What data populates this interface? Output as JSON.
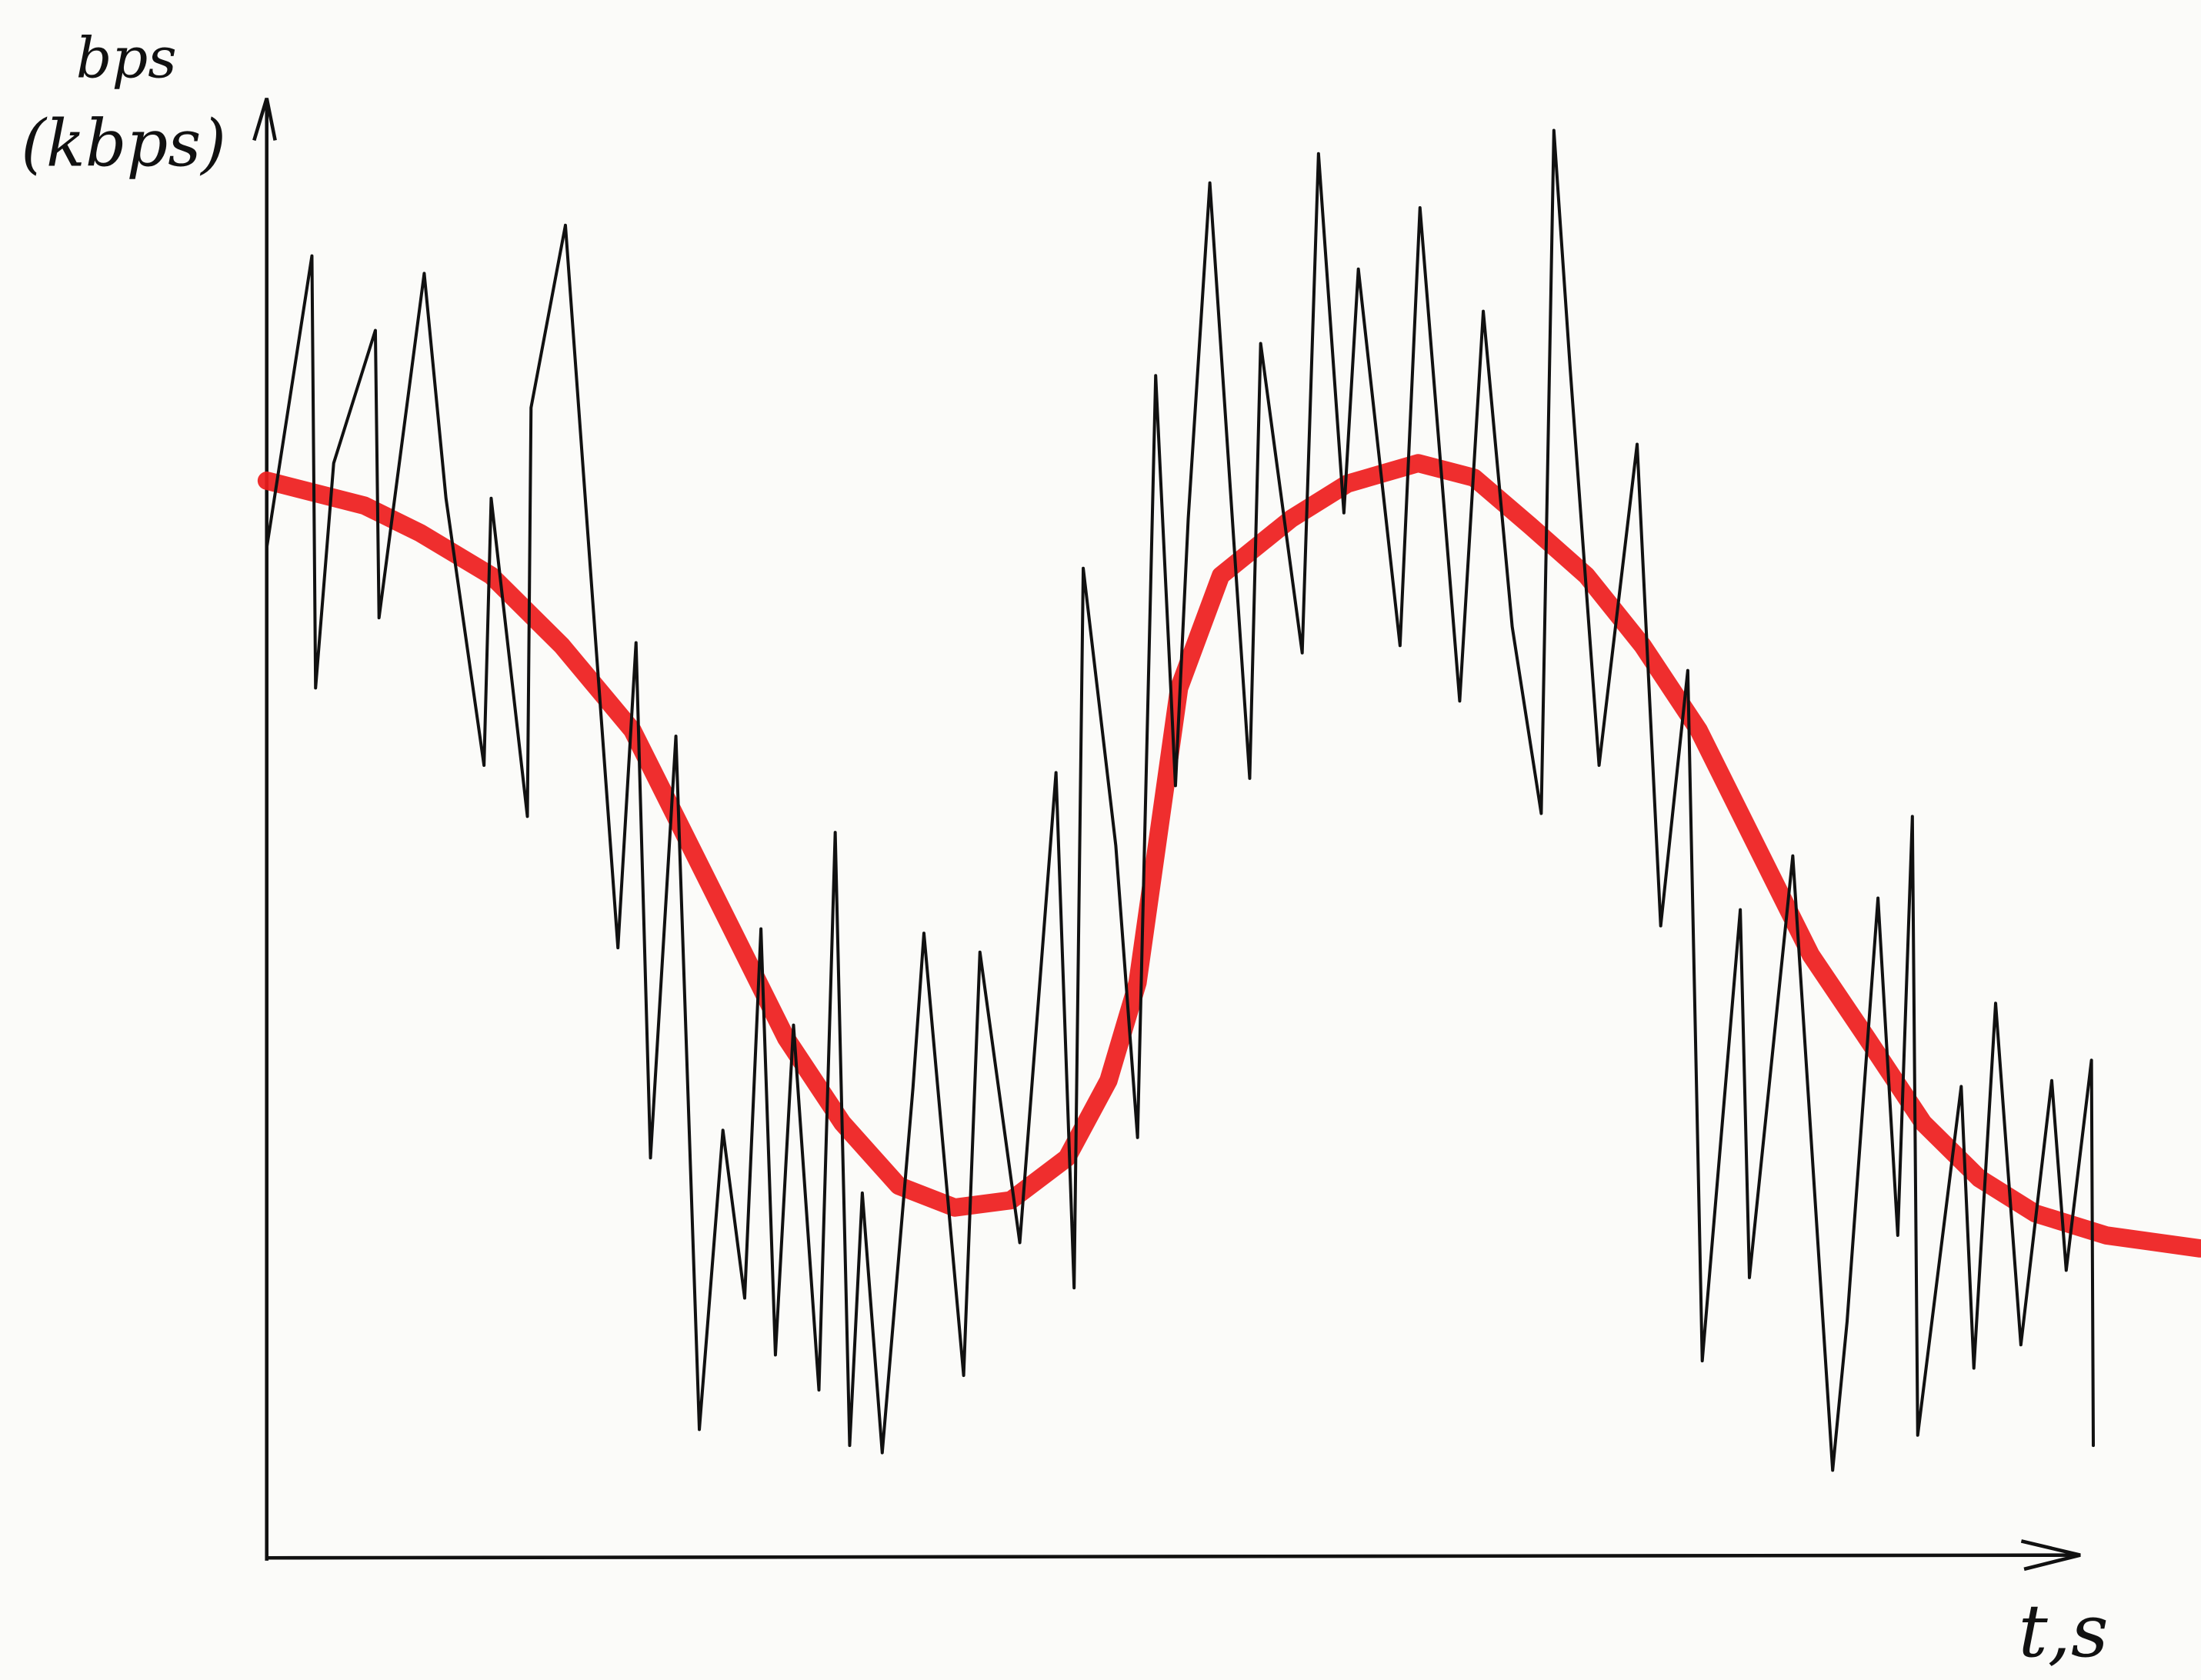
{
  "chart_data": {
    "type": "line",
    "ylabel": [
      "bps",
      "(kbps)"
    ],
    "xlabel": "t,s",
    "xlim": [
      0,
      107
    ],
    "ylim": [
      0,
      100
    ],
    "grid": false,
    "series": [
      {
        "color": "#111111",
        "x": [
          0,
          2.5,
          2.7,
          3.7,
          6.0,
          6.2,
          8.7,
          9.9,
          12.0,
          12.4,
          14.4,
          14.6,
          16.5,
          19.4,
          20.4,
          21.2,
          22.6,
          23.9,
          25.2,
          26.4,
          27.3,
          28.1,
          29.1,
          30.5,
          31.4,
          32.2,
          32.9,
          34.0,
          35.7,
          36.3,
          38.5,
          39.4,
          41.6,
          43.6,
          44.6,
          45.1,
          46.9,
          48.1,
          49.1,
          50.2,
          50.9,
          52.1,
          54.3,
          54.9,
          57.2,
          58.1,
          59.5,
          60.3,
          62.6,
          63.7,
          65.9,
          67.2,
          68.8,
          70.4,
          71.1,
          72.0,
          73.6,
          75.7,
          77.0,
          78.5,
          79.3,
          81.4,
          81.9,
          84.3,
          86.5,
          87.3,
          89.0,
          90.1,
          90.9,
          91.2,
          93.6,
          94.3,
          95.5,
          96.9,
          98.6,
          99.4,
          100.8,
          100.9
        ],
        "values": [
          69.2,
          89.2,
          59.6,
          75,
          84.1,
          64.4,
          88,
          72.6,
          54.3,
          72.6,
          50.8,
          78.8,
          91.3,
          41.8,
          62.7,
          27.4,
          56.3,
          8.8,
          29.3,
          17.8,
          43.1,
          13.9,
          36.5,
          11.5,
          49.7,
          7.7,
          25,
          7.2,
          32.2,
          42.8,
          12.5,
          41.5,
          21.6,
          53.8,
          18.5,
          67.8,
          48.8,
          28.8,
          81,
          52.9,
          71.2,
          94.2,
          53.4,
          83.2,
          62,
          96.2,
          71.6,
          88.3,
          62.5,
          92.5,
          58.7,
          85.4,
          63.8,
          51,
          97.8,
          81.5,
          54.3,
          76.3,
          43.3,
          60.8,
          13.5,
          44.4,
          19.2,
          48.1,
          6,
          16.2,
          45.2,
          22.1,
          50.8,
          8.4,
          32.3,
          13,
          38,
          14.6,
          32.7,
          19.7,
          34.1,
          7.7
        ]
      },
      {
        "color": "#ee1c1c",
        "x": [
          0,
          5.4,
          8.5,
          12.4,
          16.3,
          20.2,
          22.5,
          25.6,
          28.7,
          31.8,
          34.9,
          38,
          41.1,
          44.2,
          46.5,
          48.1,
          49.2,
          50.4,
          52.7,
          56.6,
          59.7,
          63.6,
          66.7,
          69.8,
          72.9,
          76,
          79.1,
          82.2,
          85.3,
          88.4,
          91.5,
          94.6,
          97.7,
          101.6,
          106.8
        ],
        "values": [
          73.8,
          72.1,
          70.2,
          67.3,
          62.5,
          56.7,
          51,
          43.3,
          35.6,
          29.8,
          25.5,
          24,
          24.5,
          27.4,
          32.7,
          39.4,
          49,
          59.6,
          67.3,
          71.2,
          73.6,
          75,
          74,
          70.7,
          67.3,
          62.5,
          56.7,
          49,
          41.3,
          35.6,
          29.8,
          26,
          23.6,
          22.1,
          21.2
        ]
      }
    ]
  }
}
